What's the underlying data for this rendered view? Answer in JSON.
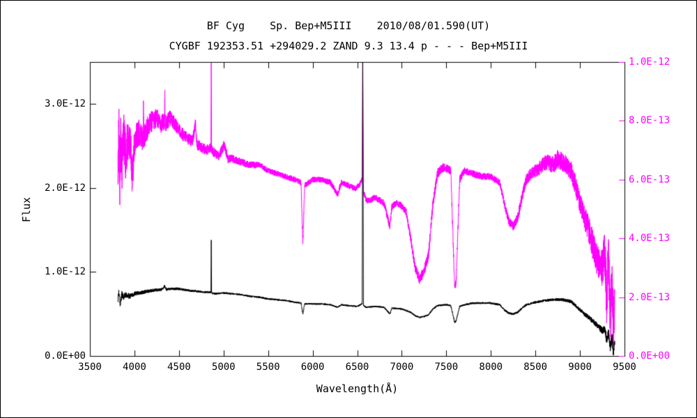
{
  "chart_data": {
    "type": "line",
    "title_line1": "BF Cyg    Sp. Bep+M5III    2010/08/01.590(UT)",
    "title_line2": "CYGBF 192353.51 +294029.2 ZAND 9.3 13.4 p - - - Bep+M5III",
    "xlabel": "Wavelength(Å)",
    "ylabel_left": "Flux",
    "background": "#ffffff",
    "frame_color": "#000000",
    "x_range": [
      3500,
      9500
    ],
    "x_ticks": [
      3500,
      4000,
      4500,
      5000,
      5500,
      6000,
      6500,
      7000,
      7500,
      8000,
      8500,
      9000,
      9500
    ],
    "y_left": {
      "range": [
        0,
        3.5e-12
      ],
      "ticks": [
        0,
        1e-12,
        2e-12,
        3e-12
      ],
      "tick_labels": [
        "0.0E+00",
        "1.0E-12",
        "2.0E-12",
        "3.0E-12"
      ],
      "color": "#000000"
    },
    "y_right": {
      "range": [
        0,
        1e-12
      ],
      "ticks": [
        0,
        2e-13,
        4e-13,
        6e-13,
        8e-13,
        1e-12
      ],
      "tick_labels": [
        "0.0E+00",
        "2.0E-13",
        "4.0E-13",
        "6.0E-13",
        "8.0E-13",
        "1.0E-12"
      ],
      "color": "#ff00ff"
    },
    "grid": false,
    "legend": "none",
    "series": [
      {
        "name": "scaled-spectrum-magenta",
        "axis": "right",
        "color": "#ff00ff",
        "points": [
          [
            3815,
            6.2e-13
          ],
          [
            3825,
            7.8e-13
          ],
          [
            3835,
            5.8e-13
          ],
          [
            3845,
            7.2e-13
          ],
          [
            3860,
            6.4e-13
          ],
          [
            3880,
            7.6e-13
          ],
          [
            3900,
            6.8e-13
          ],
          [
            3930,
            7.4e-13
          ],
          [
            3960,
            7e-13
          ],
          [
            3975,
            5.9e-13
          ],
          [
            4000,
            7.3e-13
          ],
          [
            4050,
            7.6e-13
          ],
          [
            4098,
            7.4e-13
          ],
          [
            4102,
            8.6e-13
          ],
          [
            4106,
            7.4e-13
          ],
          [
            4150,
            7.8e-13
          ],
          [
            4200,
            8e-13
          ],
          [
            4250,
            8.1e-13
          ],
          [
            4300,
            7.9e-13
          ],
          [
            4338,
            8e-13
          ],
          [
            4341,
            9.3e-13
          ],
          [
            4344,
            7.9e-13
          ],
          [
            4400,
            8.1e-13
          ],
          [
            4450,
            7.9e-13
          ],
          [
            4500,
            7.7e-13
          ],
          [
            4550,
            7.5e-13
          ],
          [
            4600,
            7.4e-13
          ],
          [
            4650,
            7.3e-13
          ],
          [
            4686,
            7.9e-13
          ],
          [
            4700,
            7.2e-13
          ],
          [
            4750,
            7.1e-13
          ],
          [
            4800,
            7e-13
          ],
          [
            4858,
            7.1e-13
          ],
          [
            4862,
            9.9e-13
          ],
          [
            4866,
            7e-13
          ],
          [
            4900,
            6.9e-13
          ],
          [
            4950,
            6.8e-13
          ],
          [
            5007,
            7.2e-13
          ],
          [
            5050,
            6.7e-13
          ],
          [
            5100,
            6.7e-13
          ],
          [
            5200,
            6.6e-13
          ],
          [
            5300,
            6.5e-13
          ],
          [
            5400,
            6.5e-13
          ],
          [
            5500,
            6.3e-13
          ],
          [
            5600,
            6.2e-13
          ],
          [
            5700,
            6.1e-13
          ],
          [
            5800,
            6e-13
          ],
          [
            5870,
            5.9e-13
          ],
          [
            5890,
            3.8e-13
          ],
          [
            5910,
            5.8e-13
          ],
          [
            6000,
            6e-13
          ],
          [
            6100,
            6e-13
          ],
          [
            6200,
            5.9e-13
          ],
          [
            6280,
            5.5e-13
          ],
          [
            6320,
            5.9e-13
          ],
          [
            6400,
            5.8e-13
          ],
          [
            6480,
            5.7e-13
          ],
          [
            6520,
            5.8e-13
          ],
          [
            6556,
            6e-13
          ],
          [
            6562,
            1.02e-12
          ],
          [
            6570,
            5.6e-13
          ],
          [
            6600,
            5.3e-13
          ],
          [
            6650,
            5.3e-13
          ],
          [
            6700,
            5.4e-13
          ],
          [
            6800,
            5.2e-13
          ],
          [
            6867,
            4.4e-13
          ],
          [
            6890,
            5.1e-13
          ],
          [
            6950,
            5.2e-13
          ],
          [
            7000,
            5.1e-13
          ],
          [
            7050,
            4.9e-13
          ],
          [
            7100,
            4e-13
          ],
          [
            7150,
            3e-13
          ],
          [
            7200,
            2.6e-13
          ],
          [
            7250,
            2.9e-13
          ],
          [
            7300,
            3.4e-13
          ],
          [
            7350,
            5.2e-13
          ],
          [
            7400,
            6.2e-13
          ],
          [
            7450,
            6.4e-13
          ],
          [
            7500,
            6.4e-13
          ],
          [
            7550,
            6.3e-13
          ],
          [
            7594,
            2.3e-13
          ],
          [
            7610,
            2.5e-13
          ],
          [
            7650,
            6e-13
          ],
          [
            7700,
            6.3e-13
          ],
          [
            7800,
            6.2e-13
          ],
          [
            7900,
            6.1e-13
          ],
          [
            8000,
            6.1e-13
          ],
          [
            8100,
            5.9e-13
          ],
          [
            8150,
            5.2e-13
          ],
          [
            8200,
            4.6e-13
          ],
          [
            8250,
            4.4e-13
          ],
          [
            8300,
            4.7e-13
          ],
          [
            8350,
            5.4e-13
          ],
          [
            8400,
            6e-13
          ],
          [
            8450,
            6.2e-13
          ],
          [
            8500,
            6.3e-13
          ],
          [
            8550,
            6.4e-13
          ],
          [
            8620,
            6.6e-13
          ],
          [
            8700,
            6.5e-13
          ],
          [
            8750,
            6.7e-13
          ],
          [
            8800,
            6.6e-13
          ],
          [
            8850,
            6.5e-13
          ],
          [
            8900,
            6.3e-13
          ],
          [
            8950,
            5.8e-13
          ],
          [
            9000,
            5.2e-13
          ],
          [
            9050,
            4.7e-13
          ],
          [
            9100,
            4.3e-13
          ],
          [
            9150,
            3.7e-13
          ],
          [
            9200,
            3.2e-13
          ],
          [
            9250,
            2.9e-13
          ],
          [
            9280,
            3.5e-13
          ],
          [
            9300,
            1.8e-13
          ],
          [
            9320,
            3.6e-13
          ],
          [
            9340,
            1.2e-13
          ],
          [
            9360,
            2.8e-13
          ],
          [
            9375,
            5e-14
          ],
          [
            9390,
            2.2e-13
          ]
        ],
        "noise": [
          [
            3815,
            1e-13
          ],
          [
            3900,
            8e-14
          ],
          [
            4000,
            5e-14
          ],
          [
            4200,
            3.5e-14
          ],
          [
            4500,
            2.2e-14
          ],
          [
            5000,
            1.5e-14
          ],
          [
            5500,
            1e-14
          ],
          [
            6000,
            1e-14
          ],
          [
            6500,
            1e-14
          ],
          [
            7000,
            1.2e-14
          ],
          [
            7300,
            1.8e-14
          ],
          [
            7700,
            1.2e-14
          ],
          [
            8100,
            1.2e-14
          ],
          [
            8450,
            2e-14
          ],
          [
            8700,
            3e-14
          ],
          [
            9000,
            3.5e-14
          ],
          [
            9200,
            5.5e-14
          ],
          [
            9300,
            8.5e-14
          ],
          [
            9390,
            9.5e-14
          ]
        ]
      },
      {
        "name": "flux-spectrum-black",
        "axis": "left",
        "color": "#000000",
        "points": [
          [
            3815,
            6.8e-13
          ],
          [
            3825,
            7.8e-13
          ],
          [
            3840,
            6.2e-13
          ],
          [
            3860,
            7.4e-13
          ],
          [
            3880,
            7e-13
          ],
          [
            3900,
            7.3e-13
          ],
          [
            3950,
            7.1e-13
          ],
          [
            4000,
            7.4e-13
          ],
          [
            4100,
            7.6e-13
          ],
          [
            4200,
            7.8e-13
          ],
          [
            4300,
            7.9e-13
          ],
          [
            4340,
            8.3e-13
          ],
          [
            4360,
            7.9e-13
          ],
          [
            4400,
            8e-13
          ],
          [
            4500,
            8e-13
          ],
          [
            4600,
            7.8e-13
          ],
          [
            4700,
            7.7e-13
          ],
          [
            4800,
            7.6e-13
          ],
          [
            4858,
            7.6e-13
          ],
          [
            4862,
            1.38e-12
          ],
          [
            4866,
            7.5e-13
          ],
          [
            4900,
            7.4e-13
          ],
          [
            5000,
            7.5e-13
          ],
          [
            5100,
            7.4e-13
          ],
          [
            5200,
            7.3e-13
          ],
          [
            5300,
            7.1e-13
          ],
          [
            5400,
            7e-13
          ],
          [
            5500,
            6.8e-13
          ],
          [
            5600,
            6.7e-13
          ],
          [
            5700,
            6.6e-13
          ],
          [
            5800,
            6.4e-13
          ],
          [
            5870,
            6.3e-13
          ],
          [
            5890,
            5e-13
          ],
          [
            5910,
            6.2e-13
          ],
          [
            6000,
            6.2e-13
          ],
          [
            6100,
            6.2e-13
          ],
          [
            6200,
            6.1e-13
          ],
          [
            6280,
            5.8e-13
          ],
          [
            6320,
            6.1e-13
          ],
          [
            6400,
            6e-13
          ],
          [
            6500,
            5.9e-13
          ],
          [
            6556,
            6.2e-13
          ],
          [
            6562,
            3.5e-12
          ],
          [
            6570,
            6e-13
          ],
          [
            6600,
            5.8e-13
          ],
          [
            6700,
            5.9e-13
          ],
          [
            6800,
            5.8e-13
          ],
          [
            6867,
            5e-13
          ],
          [
            6890,
            5.7e-13
          ],
          [
            7000,
            5.6e-13
          ],
          [
            7100,
            5.2e-13
          ],
          [
            7150,
            4.8e-13
          ],
          [
            7200,
            4.6e-13
          ],
          [
            7250,
            4.7e-13
          ],
          [
            7300,
            4.9e-13
          ],
          [
            7350,
            5.6e-13
          ],
          [
            7400,
            6e-13
          ],
          [
            7500,
            6.1e-13
          ],
          [
            7550,
            6e-13
          ],
          [
            7594,
            4e-13
          ],
          [
            7610,
            4.2e-13
          ],
          [
            7650,
            5.9e-13
          ],
          [
            7700,
            6.1e-13
          ],
          [
            7800,
            6.3e-13
          ],
          [
            7900,
            6.3e-13
          ],
          [
            8000,
            6.3e-13
          ],
          [
            8100,
            6.1e-13
          ],
          [
            8150,
            5.5e-13
          ],
          [
            8200,
            5.1e-13
          ],
          [
            8250,
            5e-13
          ],
          [
            8300,
            5.2e-13
          ],
          [
            8350,
            5.7e-13
          ],
          [
            8400,
            6.1e-13
          ],
          [
            8500,
            6.4e-13
          ],
          [
            8600,
            6.6e-13
          ],
          [
            8700,
            6.7e-13
          ],
          [
            8800,
            6.7e-13
          ],
          [
            8900,
            6.5e-13
          ],
          [
            8950,
            6e-13
          ],
          [
            9000,
            5.5e-13
          ],
          [
            9050,
            5e-13
          ],
          [
            9100,
            4.6e-13
          ],
          [
            9150,
            4.1e-13
          ],
          [
            9200,
            3.6e-13
          ],
          [
            9250,
            3e-13
          ],
          [
            9280,
            3.3e-13
          ],
          [
            9300,
            1.8e-13
          ],
          [
            9320,
            2.8e-13
          ],
          [
            9340,
            1e-13
          ],
          [
            9360,
            2.2e-13
          ],
          [
            9375,
            5e-14
          ],
          [
            9390,
            1.5e-13
          ]
        ],
        "noise": [
          [
            3815,
            5e-14
          ],
          [
            3900,
            3.8e-14
          ],
          [
            4000,
            2.5e-14
          ],
          [
            4300,
            1.6e-14
          ],
          [
            5000,
            1.1e-14
          ],
          [
            6000,
            9e-15
          ],
          [
            7000,
            9e-15
          ],
          [
            8000,
            1.1e-14
          ],
          [
            8600,
            1.4e-14
          ],
          [
            9000,
            2.2e-14
          ],
          [
            9200,
            3.5e-14
          ],
          [
            9300,
            5e-14
          ],
          [
            9390,
            5.5e-14
          ]
        ]
      }
    ]
  }
}
